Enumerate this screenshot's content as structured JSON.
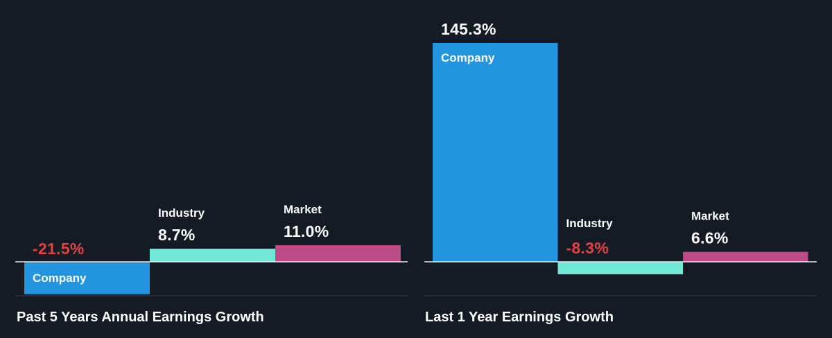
{
  "colors": {
    "background": "#151b24",
    "company": "#2394df",
    "industry": "#71e7d6",
    "market": "#bc4b87",
    "positive_text": "#ffffff",
    "negative_text": "#e64141",
    "axis": "#e8e8e8",
    "separator": "#3a4250"
  },
  "chart_data": [
    {
      "type": "bar",
      "title": "Past 5 Years Annual Earnings Growth",
      "categories": [
        "Company",
        "Industry",
        "Market"
      ],
      "values": [
        -21.5,
        8.7,
        11.0
      ],
      "value_labels": [
        "-21.5%",
        "8.7%",
        "11.0%"
      ],
      "unit": "%"
    },
    {
      "type": "bar",
      "title": "Last 1 Year Earnings Growth",
      "categories": [
        "Company",
        "Industry",
        "Market"
      ],
      "values": [
        145.3,
        -8.3,
        6.6
      ],
      "value_labels": [
        "145.3%",
        "-8.3%",
        "6.6%"
      ],
      "unit": "%"
    }
  ]
}
